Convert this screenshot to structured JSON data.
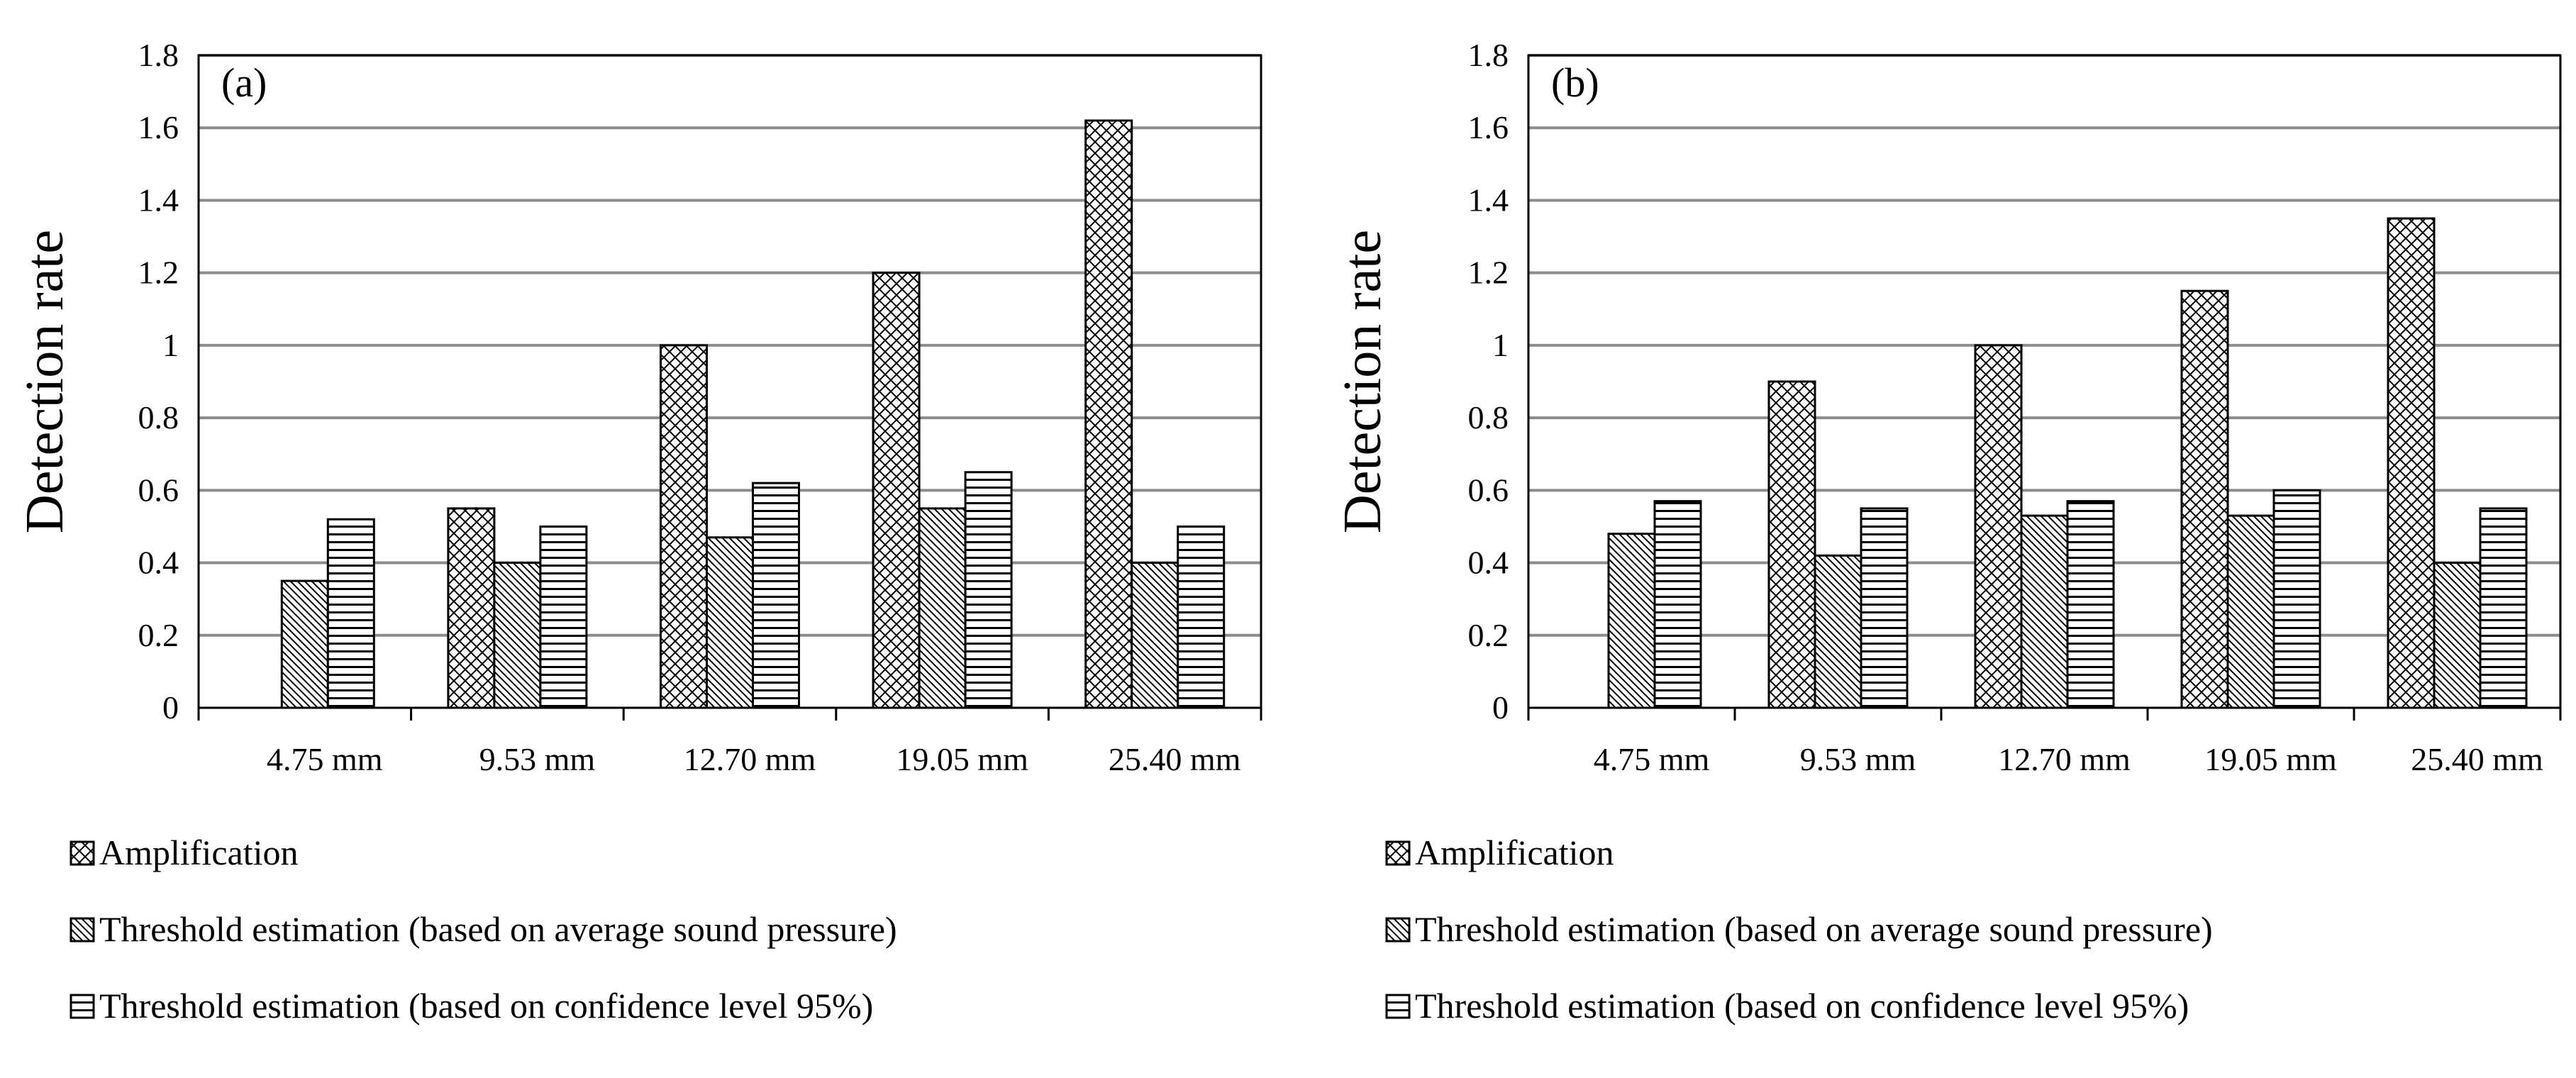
{
  "chart_data": [
    {
      "type": "bar",
      "panel_label": "(a)",
      "ylabel": "Detection rate",
      "xlabel": "",
      "ylim": [
        0,
        1.8
      ],
      "yticks": [
        "0",
        "0.2",
        "0.4",
        "0.6",
        "0.8",
        "1",
        "1.2",
        "1.4",
        "1.6",
        "1.8"
      ],
      "grid": true,
      "categories": [
        "4.75 mm",
        "9.53 mm",
        "12.70 mm",
        "19.05 mm",
        "25.40 mm"
      ],
      "series": [
        {
          "name": "Amplification",
          "pattern": "crosshatch",
          "values": [
            null,
            0.55,
            1.0,
            1.2,
            1.62
          ]
        },
        {
          "name": "Threshold estimation (based on average sound pressure)",
          "pattern": "diagonal",
          "values": [
            0.35,
            0.4,
            0.47,
            0.55,
            0.4
          ]
        },
        {
          "name": "Threshold estimation (based on confidence level 95%)",
          "pattern": "horizontal",
          "values": [
            0.52,
            0.5,
            0.62,
            0.65,
            0.5
          ]
        }
      ],
      "legend_placement": "bottom"
    },
    {
      "type": "bar",
      "panel_label": "(b)",
      "ylabel": "Detection rate",
      "xlabel": "",
      "ylim": [
        0,
        1.8
      ],
      "yticks": [
        "0",
        "0.2",
        "0.4",
        "0.6",
        "0.8",
        "1",
        "1.2",
        "1.4",
        "1.6",
        "1.8"
      ],
      "grid": true,
      "categories": [
        "4.75 mm",
        "9.53 mm",
        "12.70 mm",
        "19.05 mm",
        "25.40 mm"
      ],
      "series": [
        {
          "name": "Amplification",
          "pattern": "crosshatch",
          "values": [
            null,
            0.9,
            1.0,
            1.15,
            1.35
          ]
        },
        {
          "name": "Threshold estimation (based on average sound pressure)",
          "pattern": "diagonal",
          "values": [
            0.48,
            0.42,
            0.53,
            0.53,
            0.4
          ]
        },
        {
          "name": "Threshold estimation (based on confidence level 95%)",
          "pattern": "horizontal",
          "values": [
            0.57,
            0.55,
            0.57,
            0.6,
            0.55
          ]
        }
      ],
      "legend_placement": "bottom"
    }
  ]
}
